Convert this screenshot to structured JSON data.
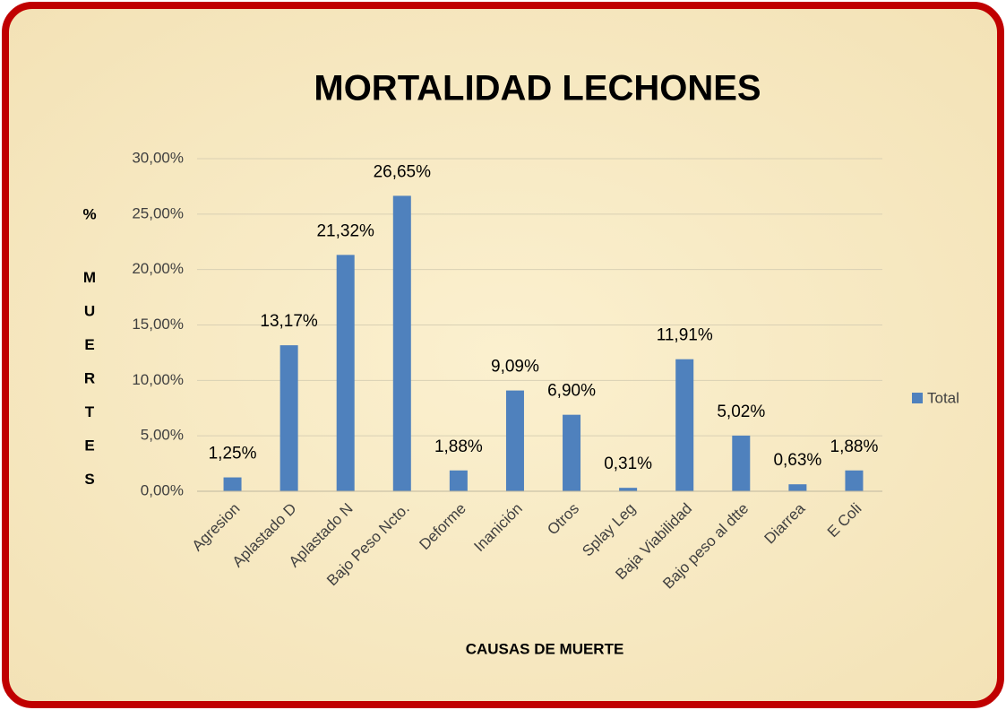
{
  "chart_data": {
    "type": "bar",
    "title": "MORTALIDAD LECHONES",
    "categories": [
      "Agresion",
      "Aplastado D",
      "Aplastado N",
      "Bajo Peso Ncto.",
      "Deforme",
      "Inanición",
      "Otros",
      "Splay Leg",
      "Baja Viabilidad",
      "Bajo peso al dtte",
      "Diarrea",
      "E Coli"
    ],
    "series": [
      {
        "name": "Total",
        "color": "#4f81bd",
        "values": [
          1.25,
          13.17,
          21.32,
          26.65,
          1.88,
          9.09,
          6.9,
          0.31,
          11.91,
          5.02,
          0.63,
          1.88
        ],
        "value_labels": [
          "1,25%",
          "13,17%",
          "21,32%",
          "26,65%",
          "1,88%",
          "9,09%",
          "6,90%",
          "0,31%",
          "11,91%",
          "5,02%",
          "0,63%",
          "1,88%"
        ]
      }
    ],
    "ylim": [
      0,
      30
    ],
    "yticks": [
      {
        "value": 0,
        "label": "0,00%"
      },
      {
        "value": 5,
        "label": "5,00%"
      },
      {
        "value": 10,
        "label": "10,00%"
      },
      {
        "value": 15,
        "label": "15,00%"
      },
      {
        "value": 20,
        "label": "20,00%"
      },
      {
        "value": 25,
        "label": "25,00%"
      },
      {
        "value": 30,
        "label": "30,00%"
      }
    ],
    "y_label_lines": [
      "%",
      "M",
      "U",
      "E",
      "R",
      "T",
      "E",
      "S"
    ],
    "x_label": "CAUSAS DE MUERTE",
    "grid": true,
    "legend": "right"
  }
}
